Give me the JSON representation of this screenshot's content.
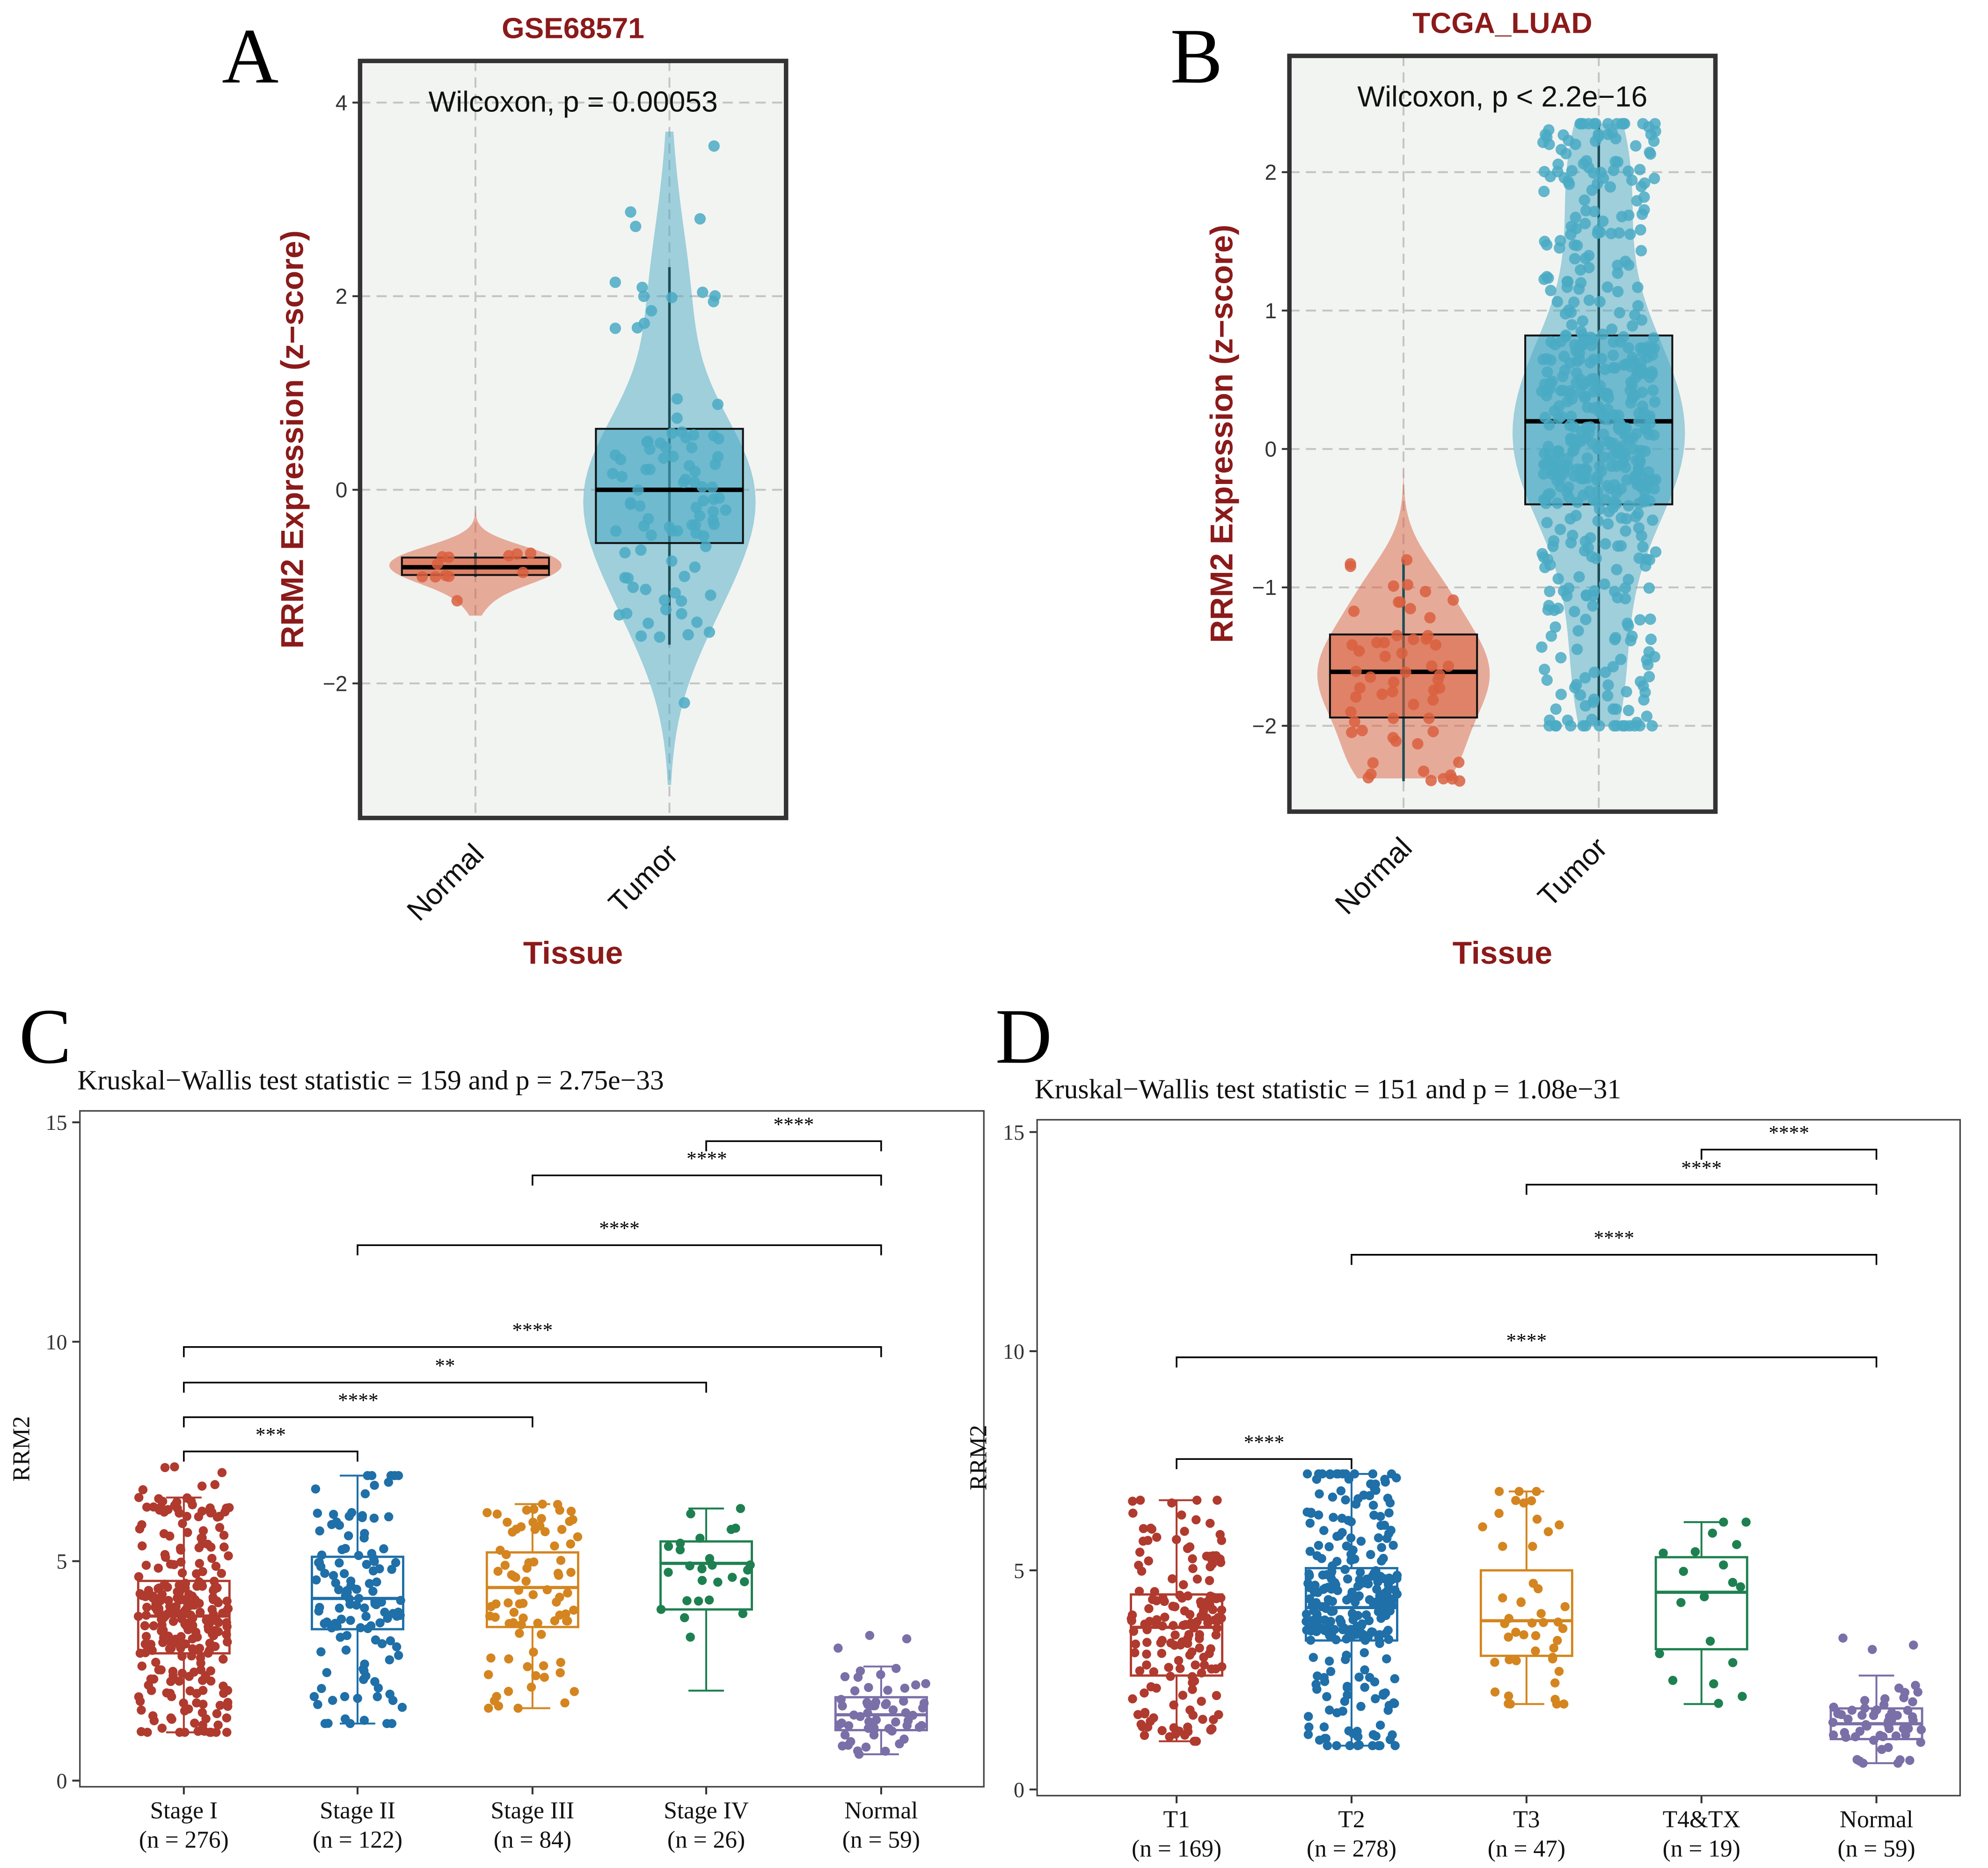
{
  "chart_data": [
    {
      "panel_letter": "A",
      "type": "violin-box",
      "title": "GSE68571",
      "annotation": "Wilcoxon, p = 0.00053",
      "xlabel": "Tissue",
      "ylabel": "RRM2 Expression (z−score)",
      "ylim": [
        -3.39,
        4.43
      ],
      "yticks": [
        4,
        2,
        0,
        -2
      ],
      "ytick_labels": [
        "4",
        "2",
        "0",
        "−2"
      ],
      "grid": true,
      "groups": [
        {
          "label": "Normal",
          "color": "#d9603f",
          "median": -0.8,
          "q1": -0.88,
          "q3": -0.7,
          "whisker_low": -0.9,
          "whisker_high": -0.65,
          "min": -1.3,
          "max": 0.1,
          "n_points": 12
        },
        {
          "label": "Tumor",
          "color": "#4aaac4",
          "median": 0.0,
          "q1": -0.55,
          "q3": 0.63,
          "whisker_low": -1.6,
          "whisker_high": 2.3,
          "min": -3.05,
          "max": 3.7,
          "n_points": 96
        }
      ]
    },
    {
      "panel_letter": "B",
      "type": "violin-box",
      "title": "TCGA_LUAD",
      "annotation": "Wilcoxon, p < 2.2e−16",
      "xlabel": "Tissue",
      "ylabel": "RRM2 Expression (z−score)",
      "ylim": [
        -2.62,
        2.84
      ],
      "yticks": [
        2,
        1,
        0,
        -1,
        -2
      ],
      "ytick_labels": [
        "2",
        "1",
        "0",
        "−1",
        "−2"
      ],
      "grid": true,
      "groups": [
        {
          "label": "Normal",
          "color": "#d9603f",
          "median": -1.61,
          "q1": -1.94,
          "q3": -1.34,
          "whisker_low": -2.4,
          "whisker_high": -0.8,
          "min": -2.38,
          "max": -0.13,
          "n_points": 59
        },
        {
          "label": "Tumor",
          "color": "#4aaac4",
          "median": 0.2,
          "q1": -0.4,
          "q3": 0.82,
          "whisker_low": -2.0,
          "whisker_high": 2.35,
          "min": -2.0,
          "max": 2.35,
          "n_points": 535
        }
      ]
    },
    {
      "panel_letter": "C",
      "type": "box-jitter",
      "title": "Kruskal−Wallis test statistic = 159 and p = 2.75e−33",
      "xlabel": "",
      "ylabel": "RRM2",
      "ylim": [
        -0.14,
        15.26
      ],
      "yticks": [
        15,
        10,
        5,
        0
      ],
      "ytick_labels": [
        "15",
        "10",
        "5",
        "0"
      ],
      "grid": false,
      "groups": [
        {
          "label": "Stage I",
          "n_label": "(n = 276)",
          "color": "#b03a2e",
          "median": 3.75,
          "q1": 2.9,
          "q3": 4.55,
          "whisker_low": 1.1,
          "whisker_high": 6.45,
          "min": 1.1,
          "max": 7.15,
          "n_points": 276
        },
        {
          "label": "Stage II",
          "n_label": "(n = 122)",
          "color": "#1f6fa8",
          "median": 4.15,
          "q1": 3.45,
          "q3": 5.1,
          "whisker_low": 1.3,
          "whisker_high": 6.95,
          "min": 1.3,
          "max": 6.95,
          "n_points": 122
        },
        {
          "label": "Stage III",
          "n_label": "(n = 84)",
          "color": "#d4851f",
          "median": 4.4,
          "q1": 3.5,
          "q3": 5.2,
          "whisker_low": 1.65,
          "whisker_high": 6.3,
          "min": 1.65,
          "max": 6.3,
          "n_points": 84
        },
        {
          "label": "Stage IV",
          "n_label": "(n = 26)",
          "color": "#1e8050",
          "median": 4.95,
          "q1": 3.9,
          "q3": 5.45,
          "whisker_low": 2.05,
          "whisker_high": 6.2,
          "min": 1.05,
          "max": 6.2,
          "n_points": 26
        },
        {
          "label": "Normal",
          "n_label": "(n = 59)",
          "color": "#7b6fa8",
          "median": 1.5,
          "q1": 1.15,
          "q3": 1.9,
          "whisker_low": 0.6,
          "whisker_high": 2.6,
          "min": 0.6,
          "max": 3.5,
          "n_points": 59
        }
      ],
      "comparisons": [
        {
          "from": 0,
          "to": 1,
          "y": 7.5,
          "label": "***"
        },
        {
          "from": 0,
          "to": 2,
          "y": 8.28,
          "label": "****"
        },
        {
          "from": 0,
          "to": 3,
          "y": 9.07,
          "label": "**"
        },
        {
          "from": 0,
          "to": 4,
          "y": 9.88,
          "label": "****"
        },
        {
          "from": 1,
          "to": 4,
          "y": 12.2,
          "label": "****"
        },
        {
          "from": 2,
          "to": 4,
          "y": 13.79,
          "label": "****"
        },
        {
          "from": 3,
          "to": 4,
          "y": 14.57,
          "label": "****"
        }
      ]
    },
    {
      "panel_letter": "D",
      "type": "box-jitter",
      "title": "Kruskal−Wallis test statistic = 151 and p = 1.08e−31",
      "xlabel": "",
      "ylabel": "RRM2",
      "ylim": [
        -0.14,
        15.28
      ],
      "yticks": [
        15,
        10,
        5,
        0
      ],
      "ytick_labels": [
        "15",
        "10",
        "5",
        "0"
      ],
      "grid": false,
      "groups": [
        {
          "label": "T1",
          "n_label": "(n = 169)",
          "color": "#b03a2e",
          "median": 3.7,
          "q1": 2.6,
          "q3": 4.45,
          "whisker_low": 1.1,
          "whisker_high": 6.6,
          "min": 1.1,
          "max": 6.6,
          "n_points": 169
        },
        {
          "label": "T2",
          "n_label": "(n = 278)",
          "color": "#1f6fa8",
          "median": 4.15,
          "q1": 3.4,
          "q3": 5.05,
          "whisker_low": 1.0,
          "whisker_high": 7.2,
          "min": 1.0,
          "max": 7.2,
          "n_points": 278
        },
        {
          "label": "T3",
          "n_label": "(n = 47)",
          "color": "#d4851f",
          "median": 3.85,
          "q1": 3.05,
          "q3": 5.0,
          "whisker_low": 1.95,
          "whisker_high": 6.8,
          "min": 1.95,
          "max": 6.8,
          "n_points": 47
        },
        {
          "label": "T4&TX",
          "n_label": "(n = 19)",
          "color": "#1e8050",
          "median": 4.5,
          "q1": 3.2,
          "q3": 5.3,
          "whisker_low": 1.95,
          "whisker_high": 6.1,
          "min": 1.95,
          "max": 6.1,
          "n_points": 19
        },
        {
          "label": "Normal",
          "n_label": "(n = 59)",
          "color": "#7b6fa8",
          "median": 1.5,
          "q1": 1.15,
          "q3": 1.85,
          "whisker_low": 0.6,
          "whisker_high": 2.6,
          "min": 0.6,
          "max": 3.5,
          "n_points": 59
        }
      ],
      "comparisons": [
        {
          "from": 0,
          "to": 1,
          "y": 7.54,
          "label": "****"
        },
        {
          "from": 0,
          "to": 4,
          "y": 9.86,
          "label": "****"
        },
        {
          "from": 1,
          "to": 4,
          "y": 12.2,
          "label": "****"
        },
        {
          "from": 2,
          "to": 4,
          "y": 13.8,
          "label": "****"
        },
        {
          "from": 3,
          "to": 4,
          "y": 14.6,
          "label": "****"
        }
      ]
    }
  ]
}
